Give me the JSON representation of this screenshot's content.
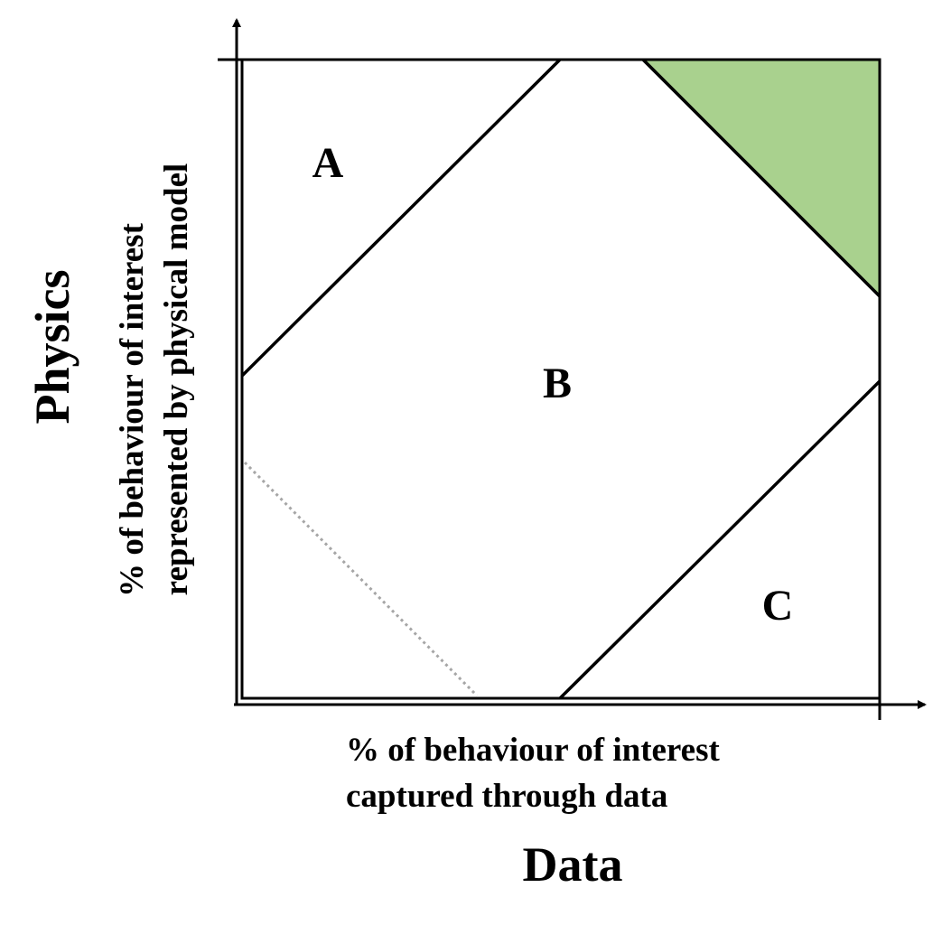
{
  "regions": {
    "a": "A",
    "b": "B",
    "c": "C"
  },
  "x_axis": {
    "description_line1": "% of behaviour of interest",
    "description_line2": "captured through data",
    "title": "Data"
  },
  "y_axis": {
    "description_line1": "% of behaviour of interest",
    "description_line2": "represented by physical model",
    "title": "Physics"
  },
  "colors": {
    "highlight_region": "#a9d18e",
    "dotted_line": "#a6a6a6",
    "lines": "#000000"
  }
}
